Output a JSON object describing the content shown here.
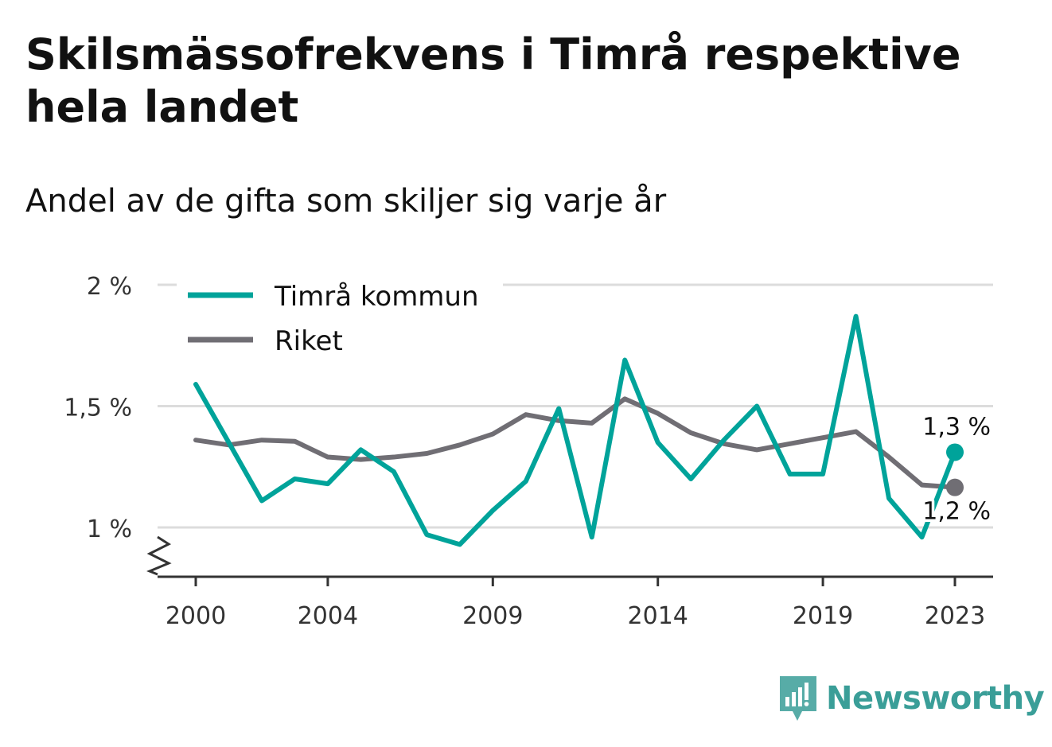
{
  "title": "Skilsmässofrekvens i Timrå respektive hela landet",
  "subtitle": "Andel av de gifta som skiljer sig varje år",
  "brand": {
    "name": "Newsworthy",
    "icon": "bar-chart-speech-bubble-icon",
    "color": "#3a9e98"
  },
  "chart_data": {
    "type": "line",
    "x": [
      2000,
      2001,
      2002,
      2003,
      2004,
      2005,
      2006,
      2007,
      2008,
      2009,
      2010,
      2011,
      2012,
      2013,
      2014,
      2015,
      2016,
      2017,
      2018,
      2019,
      2020,
      2021,
      2022,
      2023
    ],
    "x_ticks": [
      2000,
      2004,
      2009,
      2014,
      2019,
      2023
    ],
    "x_tick_labels": [
      "2000",
      "2004",
      "2009",
      "2014",
      "2019",
      "2023"
    ],
    "y_ticks": [
      1.0,
      1.5,
      2.0
    ],
    "y_tick_labels": [
      "1 %",
      "1,5 %",
      "2 %"
    ],
    "ylim": [
      0.8,
      2.0
    ],
    "y_axis_break": true,
    "grid": "horizontal",
    "legend_position": "top-left",
    "series": [
      {
        "name": "Timrå kommun",
        "color": "#00a39a",
        "values": [
          1.59,
          1.35,
          1.11,
          1.2,
          1.18,
          1.32,
          1.23,
          0.97,
          0.93,
          1.07,
          1.19,
          1.49,
          0.96,
          1.69,
          1.35,
          1.2,
          1.36,
          1.5,
          1.22,
          1.22,
          1.87,
          1.12,
          0.96,
          1.31
        ],
        "end_label": "1,3 %"
      },
      {
        "name": "Riket",
        "color": "#706e74",
        "values": [
          1.36,
          1.34,
          1.36,
          1.355,
          1.29,
          1.28,
          1.29,
          1.305,
          1.34,
          1.385,
          1.465,
          1.44,
          1.43,
          1.53,
          1.47,
          1.39,
          1.345,
          1.32,
          1.345,
          1.37,
          1.395,
          1.29,
          1.175,
          1.165
        ],
        "end_label": "1,2 %"
      }
    ]
  }
}
